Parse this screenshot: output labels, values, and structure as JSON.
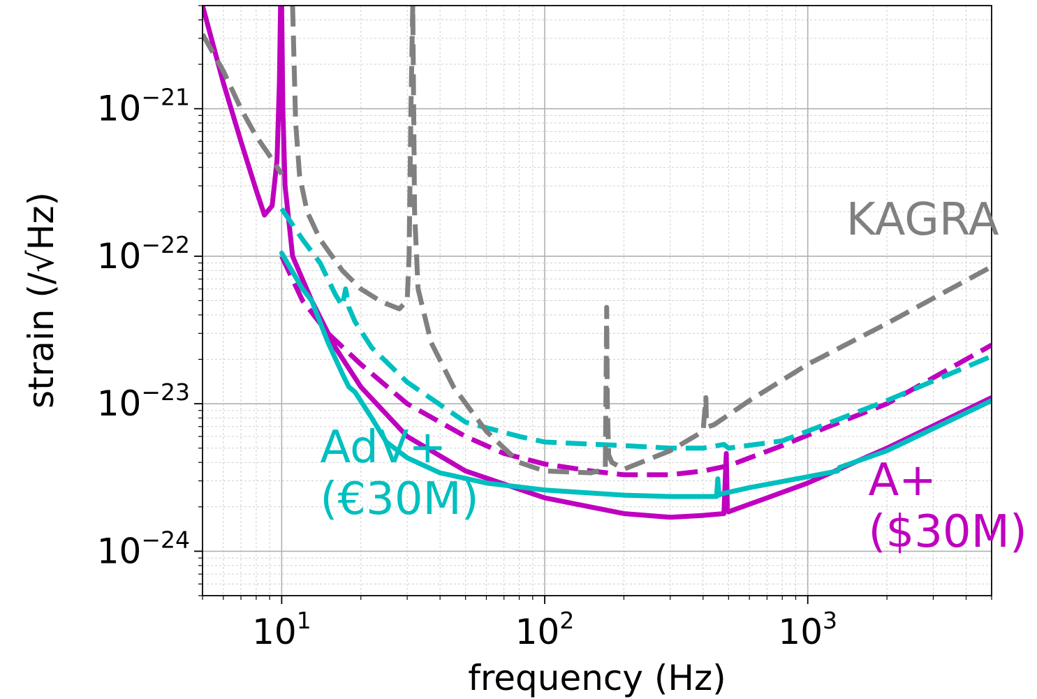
{
  "chart_data": {
    "type": "line",
    "xlabel": "frequency (Hz)",
    "ylabel": "strain (/√Hz)",
    "x_scale": "log",
    "y_scale": "log",
    "xlim": [
      5,
      5000
    ],
    "ylim": [
      5e-25,
      5e-21
    ],
    "grid": "major and minor",
    "x_ticks": [
      {
        "value": 10,
        "base": "10",
        "exp": "1"
      },
      {
        "value": 100,
        "base": "10",
        "exp": "2"
      },
      {
        "value": 1000,
        "base": "10",
        "exp": "3"
      }
    ],
    "y_ticks": [
      {
        "value": 1e-21,
        "base": "10",
        "exp": "−21"
      },
      {
        "value": 1e-22,
        "base": "10",
        "exp": "−22"
      },
      {
        "value": 1e-23,
        "base": "10",
        "exp": "−23"
      },
      {
        "value": 1e-24,
        "base": "10",
        "exp": "−24"
      }
    ],
    "annotations": [
      {
        "key": "kagra",
        "lines": [
          "KAGRA"
        ],
        "color": "#808080",
        "x": 1400,
        "y": 1.4e-22
      },
      {
        "key": "advplus",
        "lines": [
          "AdV+",
          "(€30M)"
        ],
        "color": "#00BFBF",
        "x": 14,
        "y": 4e-24
      },
      {
        "key": "aplus",
        "lines": [
          "A+",
          "($30M)"
        ],
        "color": "#BF00BF",
        "x": 1700,
        "y": 2.4e-24
      }
    ],
    "series": [
      {
        "id": "a-plus-upgrade",
        "color": "#BF00BF",
        "style": "solid",
        "x": [
          5,
          6,
          7,
          8,
          8.6,
          9.2,
          9.6,
          9.8,
          9.9,
          10,
          10.1,
          10.3,
          11,
          13,
          16,
          20,
          30,
          50,
          100,
          200,
          300,
          400,
          480,
          490,
          495,
          500,
          520,
          700,
          1000,
          2000,
          5000
        ],
        "y": [
          5e-21,
          1.5e-21,
          6e-22,
          2.8e-22,
          1.9e-22,
          2.2e-22,
          4.5e-22,
          1.5e-21,
          5e-21,
          5e-21,
          1e-21,
          3e-22,
          1e-22,
          5e-23,
          2.4e-23,
          1.3e-23,
          6e-24,
          3.5e-24,
          2.3e-24,
          1.8e-24,
          1.7e-24,
          1.75e-24,
          1.8e-24,
          4.6e-24,
          1.9e-24,
          1.85e-24,
          1.9e-24,
          2.3e-24,
          2.9e-24,
          5e-24,
          1.1e-23
        ]
      },
      {
        "id": "a-plus-baseline",
        "color": "#BF00BF",
        "style": "dashed",
        "x": [
          10,
          12,
          15,
          20,
          30,
          50,
          70,
          100,
          150,
          200,
          300,
          400,
          500,
          800,
          1200,
          2000,
          5000
        ],
        "y": [
          1e-22,
          5e-23,
          3e-23,
          1.85e-23,
          1e-23,
          6e-24,
          4.6e-24,
          3.9e-24,
          3.5e-24,
          3.3e-24,
          3.3e-24,
          3.5e-24,
          3.8e-24,
          5.2e-24,
          7e-24,
          1e-23,
          2.5e-23
        ]
      },
      {
        "id": "adv-plus-upgrade",
        "color": "#00BFBF",
        "style": "solid",
        "x": [
          10,
          12,
          13,
          15,
          17,
          18,
          19,
          22,
          25,
          30,
          40,
          60,
          100,
          200,
          300,
          450,
          455,
          460,
          470,
          600,
          1000,
          1300,
          1320,
          2000,
          5000
        ],
        "y": [
          1.05e-22,
          6e-23,
          5e-23,
          2.6e-23,
          1.6e-23,
          1.3e-23,
          1.2e-23,
          8e-24,
          5.5e-24,
          4.3e-24,
          3.4e-24,
          2.9e-24,
          2.6e-24,
          2.4e-24,
          2.35e-24,
          2.35e-24,
          3.1e-24,
          2.4e-24,
          2.45e-24,
          2.7e-24,
          3.2e-24,
          3.5e-24,
          3.7e-24,
          4.8e-24,
          1.05e-23
        ]
      },
      {
        "id": "adv-plus-baseline",
        "color": "#00BFBF",
        "style": "dashed",
        "x": [
          10,
          12,
          14,
          16,
          17,
          17.5,
          18,
          19,
          22,
          30,
          50,
          80,
          100,
          200,
          300,
          400,
          480,
          500,
          800,
          1300,
          2000,
          5000
        ],
        "y": [
          2.1e-22,
          1.3e-22,
          9e-23,
          5.5e-23,
          4.6e-23,
          6e-23,
          4.5e-23,
          3.6e-23,
          2.4e-23,
          1.4e-23,
          7.5e-24,
          6e-24,
          5.5e-24,
          5.2e-24,
          5e-24,
          5e-24,
          5.3e-24,
          5e-24,
          5.6e-24,
          7.8e-24,
          1.05e-23,
          2.1e-23
        ]
      },
      {
        "id": "kagra-low-freq",
        "color": "#808080",
        "style": "dashed",
        "x": [
          5,
          6,
          7,
          8,
          9,
          10
        ],
        "y": [
          3.2e-21,
          1.8e-21,
          1e-21,
          6.5e-22,
          4.8e-22,
          3.6e-22
        ]
      },
      {
        "id": "kagra",
        "color": "#808080",
        "style": "dashed",
        "x": [
          11.0,
          11.3,
          11.7,
          12.5,
          14,
          17,
          20,
          24,
          28,
          30,
          30.5,
          31,
          31.5,
          32,
          33,
          37,
          45,
          60,
          80,
          100,
          150,
          170,
          172,
          173,
          175,
          180,
          200,
          300,
          400,
          410,
          412,
          420,
          440,
          600,
          1000,
          2000,
          5000
        ],
        "y": [
          5e-21,
          8e-22,
          3.5e-22,
          2e-22,
          1.3e-22,
          8e-23,
          6e-23,
          4.9e-23,
          4.4e-23,
          5e-23,
          1e-22,
          1e-21,
          5e-21,
          2e-22,
          6e-23,
          2.6e-23,
          1.3e-23,
          6.5e-24,
          4e-24,
          3.5e-24,
          3.4e-24,
          3.6e-24,
          4.5e-23,
          1e-23,
          4.5e-24,
          4e-24,
          3.6e-24,
          4.8e-24,
          6.5e-24,
          1.1e-23,
          7.5e-24,
          7e-24,
          7.2e-24,
          1.05e-23,
          1.85e-23,
          3.5e-23,
          8.5e-23
        ]
      }
    ]
  }
}
